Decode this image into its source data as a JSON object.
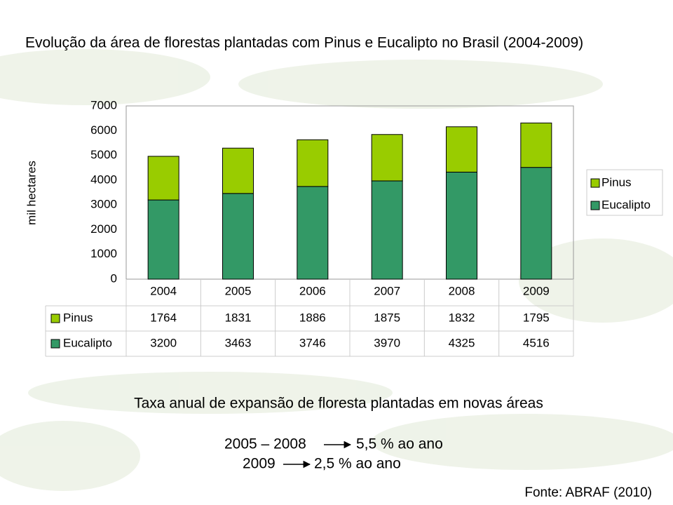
{
  "chart_data": {
    "type": "stacked-bar",
    "title": "Evolução da área de florestas plantadas com Pinus e Eucalipto no Brasil (2004-2009)",
    "y_label": "mil hectares",
    "categories": [
      "2004",
      "2005",
      "2006",
      "2007",
      "2008",
      "2009"
    ],
    "series": [
      {
        "name": "Pinus",
        "color": "#99cc00",
        "values": [
          1764,
          1831,
          1886,
          1875,
          1832,
          1795
        ]
      },
      {
        "name": "Eucalipto",
        "color": "#339966",
        "values": [
          3200,
          3463,
          3746,
          3970,
          4325,
          4516
        ]
      }
    ],
    "ylim": [
      0,
      7000
    ],
    "yticks": [
      0,
      1000,
      2000,
      3000,
      4000,
      5000,
      6000,
      7000
    ],
    "grid": false,
    "legend": "right",
    "notes": {
      "heading": "Taxa anual de expansão de floresta plantadas em novas áreas",
      "period1": "2005 – 2008",
      "rate1": "5,5 % ao ano",
      "period2": "2009",
      "rate2": "2,5 % ao ano",
      "source": "Fonte: ABRAF  (2010)"
    }
  }
}
